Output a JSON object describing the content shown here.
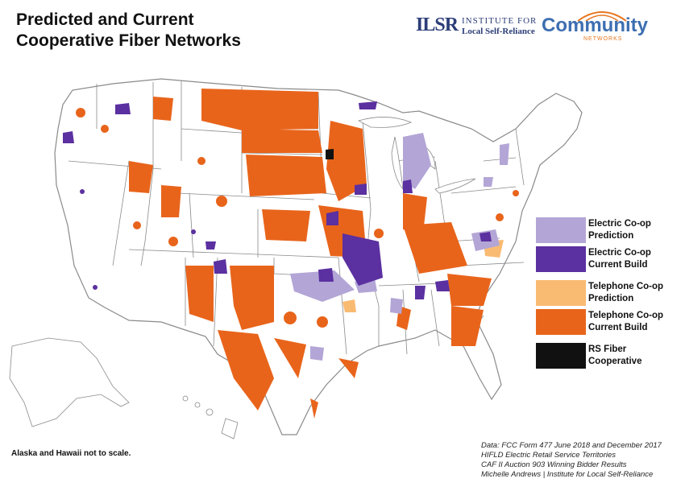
{
  "title": {
    "line1": "Predicted and Current",
    "line2": "Cooperative Fiber Networks"
  },
  "logos": {
    "ilsr_mark": "ILSR",
    "ilsr_line1": "INSTITUTE FOR",
    "ilsr_line2": "Local Self-Reliance",
    "cn_word": "Community",
    "cn_sub": "NETWORKS"
  },
  "colors": {
    "electric_prediction": "#b3a6d6",
    "electric_current": "#5b30a0",
    "telephone_prediction": "#f9bb72",
    "telephone_current": "#e8641b",
    "rs_fiber": "#111111",
    "state_border": "#7a7a7a",
    "land": "#ffffff"
  },
  "legend": [
    {
      "label_line1": "Electric Co-op",
      "label_line2": "Prediction",
      "color": "#b3a6d6"
    },
    {
      "label_line1": "Electric Co-op",
      "label_line2": "Current Build",
      "color": "#5b30a0"
    },
    {
      "label_line1": "Telephone Co-op",
      "label_line2": "Prediction",
      "color": "#f9bb72"
    },
    {
      "label_line1": "Telephone Co-op",
      "label_line2": "Current Build",
      "color": "#e8641b"
    },
    {
      "label_line1": "RS Fiber",
      "label_line2": "Cooperative",
      "color": "#111111"
    }
  ],
  "note": "Alaska and Hawaii not to scale.",
  "sources": [
    "Data: FCC Form 477 June 2018 and December 2017",
    "HIFLD Electric Retail Service Territories",
    "CAF II Auction 903 Winning Bidder Results",
    "Michelle Andrews | Institute for Local Self-Reliance"
  ]
}
